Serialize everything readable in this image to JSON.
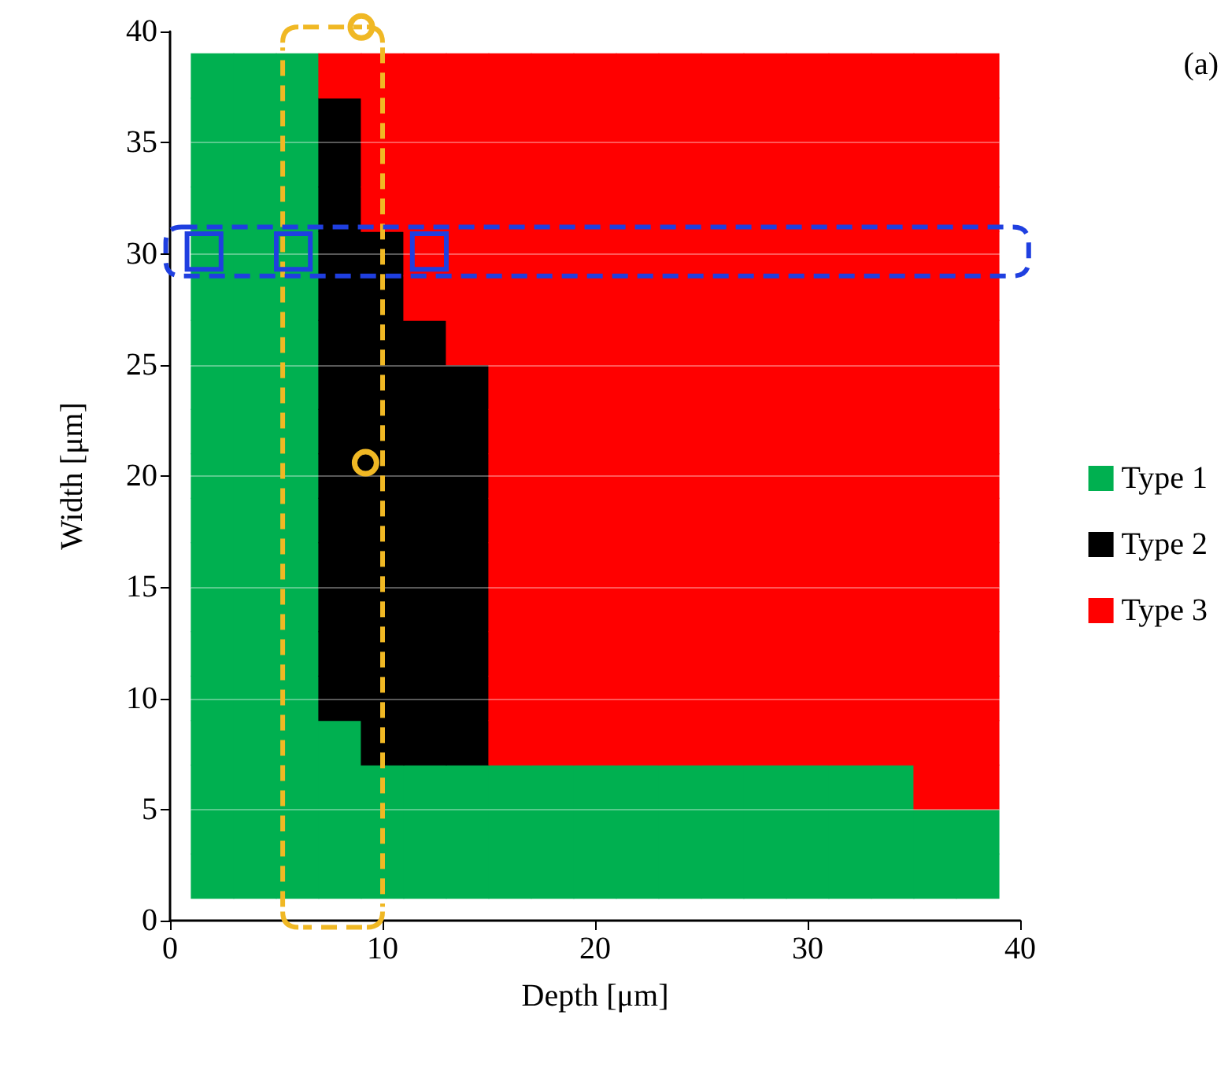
{
  "chart_data": {
    "type": "scatter",
    "xlabel": "Depth [μm]",
    "ylabel": "Width [μm]",
    "annotations": [
      "(a)"
    ],
    "xlim": [
      0,
      40
    ],
    "xticks": [
      0,
      10,
      20,
      30,
      40
    ],
    "ylim": [
      0,
      40
    ],
    "yticks": [
      0,
      5,
      10,
      15,
      20,
      25,
      30,
      35,
      40
    ],
    "grid": "y",
    "legend": "right",
    "marker": "square",
    "series": [
      {
        "name": "Type 1",
        "color": "#00b050",
        "x": [
          2,
          2,
          2,
          2,
          2,
          2,
          2,
          2,
          2,
          2,
          2,
          2,
          2,
          2,
          2,
          2,
          2,
          2,
          2,
          4,
          4,
          4,
          4,
          4,
          4,
          4,
          4,
          4,
          4,
          4,
          4,
          4,
          4,
          4,
          4,
          4,
          4,
          4,
          6,
          6,
          6,
          6,
          6,
          6,
          6,
          6,
          6,
          6,
          6,
          6,
          6,
          6,
          6,
          6,
          6,
          6,
          6,
          8,
          8,
          8,
          8,
          10,
          10,
          10,
          12,
          12,
          12,
          14,
          14,
          14,
          16,
          16,
          16,
          18,
          18,
          18,
          20,
          20,
          20,
          22,
          22,
          22,
          24,
          24,
          24,
          26,
          26,
          26,
          28,
          28,
          28,
          30,
          30,
          30,
          32,
          32,
          32,
          34,
          34,
          34,
          36,
          36,
          38,
          38
        ],
        "values": [
          2,
          4,
          6,
          8,
          10,
          12,
          14,
          16,
          18,
          20,
          22,
          24,
          26,
          28,
          30,
          32,
          34,
          36,
          38,
          2,
          4,
          6,
          8,
          10,
          12,
          14,
          16,
          18,
          20,
          22,
          24,
          26,
          28,
          30,
          32,
          34,
          36,
          38,
          2,
          4,
          6,
          8,
          10,
          12,
          14,
          16,
          18,
          20,
          22,
          24,
          26,
          28,
          30,
          32,
          34,
          36,
          38,
          2,
          4,
          6,
          8,
          2,
          4,
          6,
          2,
          4,
          6,
          2,
          4,
          6,
          2,
          4,
          6,
          2,
          4,
          6,
          2,
          4,
          6,
          2,
          4,
          6,
          2,
          4,
          6,
          2,
          4,
          6,
          2,
          4,
          6,
          2,
          4,
          6,
          2,
          4,
          6,
          2,
          4,
          6,
          2,
          4,
          2,
          4
        ]
      },
      {
        "name": "Type 2",
        "color": "#000000",
        "x": [
          8,
          8,
          8,
          8,
          8,
          8,
          8,
          8,
          8,
          8,
          8,
          8,
          8,
          8,
          10,
          10,
          10,
          10,
          10,
          10,
          10,
          10,
          10,
          10,
          10,
          10,
          12,
          12,
          12,
          12,
          12,
          12,
          12,
          12,
          12,
          12,
          14,
          14,
          14,
          14,
          14,
          14,
          14,
          14,
          14
        ],
        "values": [
          10,
          12,
          14,
          16,
          18,
          20,
          22,
          24,
          26,
          28,
          30,
          32,
          34,
          36,
          8,
          10,
          12,
          14,
          16,
          18,
          20,
          22,
          24,
          26,
          28,
          30,
          8,
          10,
          12,
          14,
          16,
          18,
          20,
          22,
          24,
          26,
          8,
          10,
          12,
          14,
          16,
          18,
          20,
          22,
          24
        ]
      },
      {
        "name": "Type 3",
        "color": "#ff0000",
        "x": [
          8,
          10,
          10,
          10,
          10,
          12,
          12,
          12,
          12,
          12,
          12,
          14,
          14,
          14,
          14,
          14,
          14,
          14,
          16,
          16,
          16,
          16,
          16,
          16,
          16,
          16,
          16,
          16,
          16,
          16,
          16,
          16,
          16,
          16,
          18,
          18,
          18,
          18,
          18,
          18,
          18,
          18,
          18,
          18,
          18,
          18,
          18,
          18,
          18,
          18,
          20,
          20,
          20,
          20,
          20,
          20,
          20,
          20,
          20,
          20,
          20,
          20,
          20,
          20,
          20,
          20,
          22,
          22,
          22,
          22,
          22,
          22,
          22,
          22,
          22,
          22,
          22,
          22,
          22,
          22,
          22,
          22,
          24,
          24,
          24,
          24,
          24,
          24,
          24,
          24,
          24,
          24,
          24,
          24,
          24,
          24,
          24,
          24,
          26,
          26,
          26,
          26,
          26,
          26,
          26,
          26,
          26,
          26,
          26,
          26,
          26,
          26,
          26,
          26,
          28,
          28,
          28,
          28,
          28,
          28,
          28,
          28,
          28,
          28,
          28,
          28,
          28,
          28,
          28,
          28,
          30,
          30,
          30,
          30,
          30,
          30,
          30,
          30,
          30,
          30,
          30,
          30,
          30,
          30,
          30,
          30,
          32,
          32,
          32,
          32,
          32,
          32,
          32,
          32,
          32,
          32,
          32,
          32,
          32,
          32,
          32,
          32,
          34,
          34,
          34,
          34,
          34,
          34,
          34,
          34,
          34,
          34,
          34,
          34,
          34,
          34,
          34,
          34,
          36,
          36,
          36,
          36,
          36,
          36,
          36,
          36,
          36,
          36,
          36,
          36,
          36,
          36,
          36,
          36,
          36,
          38,
          38,
          38,
          38,
          38,
          38,
          38,
          38,
          38,
          38,
          38,
          38,
          38,
          38,
          38,
          38,
          38
        ],
        "values": [
          38,
          32,
          34,
          36,
          38,
          28,
          30,
          32,
          34,
          36,
          38,
          26,
          28,
          30,
          32,
          34,
          36,
          38,
          8,
          10,
          12,
          14,
          16,
          18,
          20,
          22,
          24,
          26,
          28,
          30,
          32,
          34,
          36,
          38,
          8,
          10,
          12,
          14,
          16,
          18,
          20,
          22,
          24,
          26,
          28,
          30,
          32,
          34,
          36,
          38,
          8,
          10,
          12,
          14,
          16,
          18,
          20,
          22,
          24,
          26,
          28,
          30,
          32,
          34,
          36,
          38,
          8,
          10,
          12,
          14,
          16,
          18,
          20,
          22,
          24,
          26,
          28,
          30,
          32,
          34,
          36,
          38,
          8,
          10,
          12,
          14,
          16,
          18,
          20,
          22,
          24,
          26,
          28,
          30,
          32,
          34,
          36,
          38,
          8,
          10,
          12,
          14,
          16,
          18,
          20,
          22,
          24,
          26,
          28,
          30,
          32,
          34,
          36,
          38,
          8,
          10,
          12,
          14,
          16,
          18,
          20,
          22,
          24,
          26,
          28,
          30,
          32,
          34,
          36,
          38,
          8,
          10,
          12,
          14,
          16,
          18,
          20,
          22,
          24,
          26,
          28,
          30,
          32,
          34,
          36,
          38,
          8,
          10,
          12,
          14,
          16,
          18,
          20,
          22,
          24,
          26,
          28,
          30,
          32,
          34,
          36,
          38,
          8,
          10,
          12,
          14,
          16,
          18,
          20,
          22,
          24,
          26,
          28,
          30,
          32,
          34,
          36,
          38,
          6,
          8,
          10,
          12,
          14,
          16,
          18,
          20,
          22,
          24,
          26,
          28,
          30,
          32,
          34,
          36,
          38,
          6,
          8,
          10,
          12,
          14,
          16,
          18,
          20,
          22,
          24,
          26,
          28,
          30,
          32,
          34,
          36,
          38
        ]
      }
    ]
  }
}
